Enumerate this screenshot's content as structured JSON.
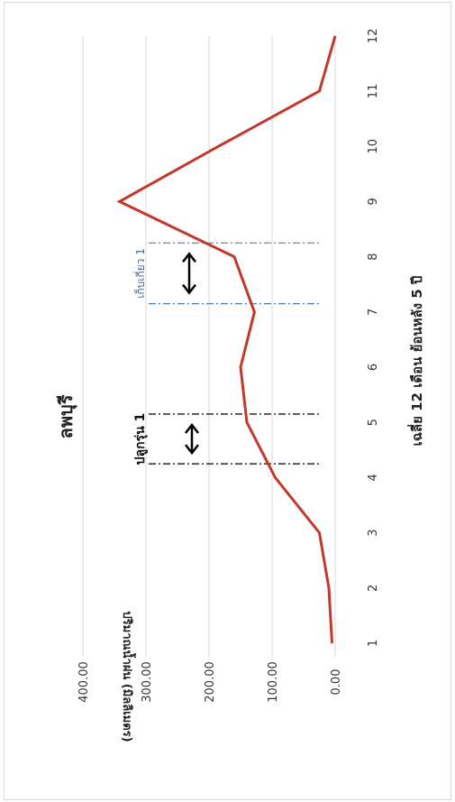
{
  "chart_data": {
    "type": "line",
    "title": "ลพบุรี",
    "xlabel": "เฉลี่ย 12 เดือน ย้อนหลัง 5 ปี",
    "ylabel": "ปริมาณน้ำฝน (มิลลิเมตร)",
    "x": [
      1,
      2,
      3,
      4,
      5,
      6,
      7,
      8,
      9,
      10,
      11,
      12
    ],
    "x_tick_labels": [
      "1",
      "2",
      "3",
      "4",
      "5",
      "6",
      "7",
      "8",
      "9",
      "10",
      "11",
      "12"
    ],
    "y_tick_labels": [
      "0.00",
      "100.00",
      "200.00",
      "300.00",
      "400.00"
    ],
    "ylim": [
      0,
      400
    ],
    "series": [
      {
        "name": "",
        "color": "#c0392b",
        "values": [
          5,
          10,
          25,
          95,
          140,
          150,
          128,
          160,
          342,
          185,
          25,
          0
        ]
      }
    ],
    "annotations": [
      {
        "label": "ปลูกรุ่น 1",
        "x_start": 4.25,
        "x_end": 5.15,
        "line_color": "#000000"
      },
      {
        "label": "เก็บเกี่ยว 1",
        "x_start": 7.15,
        "x_end": 8.25,
        "line_color": "#4a7ebb"
      }
    ],
    "grid": true,
    "orientation": "rotated-90-clockwise"
  }
}
